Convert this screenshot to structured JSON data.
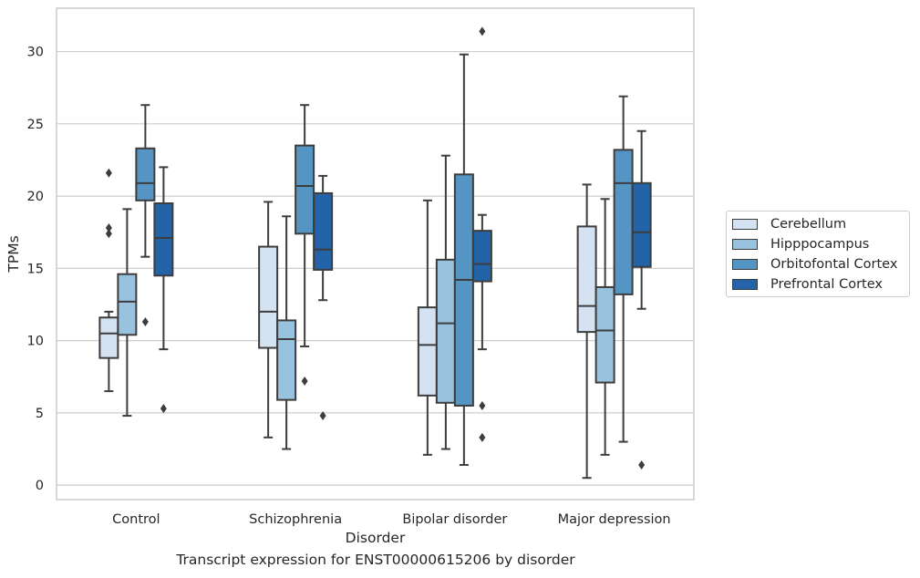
{
  "chart_data": {
    "type": "box",
    "caption": "Transcript expression for ENST00000615206 by disorder",
    "xlabel": "Disorder",
    "ylabel": "TPMs",
    "ylim": [
      -1,
      33
    ],
    "yticks": [
      0,
      5,
      10,
      15,
      20,
      25,
      30
    ],
    "categories": [
      "Control",
      "Schizophrenia",
      "Bipolar disorder",
      "Major depression"
    ],
    "grid": "horizontal",
    "legend_position": "right",
    "series": [
      {
        "name": "Cerebellum",
        "color": "#d4e2f1",
        "boxes": [
          {
            "whislo": 6.5,
            "q1": 8.8,
            "med": 10.5,
            "q3": 11.6,
            "whishi": 12.0,
            "fliers": [
              17.4,
              17.8,
              21.6
            ]
          },
          {
            "whislo": 3.3,
            "q1": 9.5,
            "med": 12.0,
            "q3": 16.5,
            "whishi": 19.6,
            "fliers": []
          },
          {
            "whislo": 2.1,
            "q1": 6.2,
            "med": 9.7,
            "q3": 12.3,
            "whishi": 19.7,
            "fliers": []
          },
          {
            "whislo": 0.5,
            "q1": 10.6,
            "med": 12.4,
            "q3": 17.9,
            "whishi": 20.8,
            "fliers": []
          }
        ]
      },
      {
        "name": "Hipppocampus",
        "color": "#98c2de",
        "boxes": [
          {
            "whislo": 4.8,
            "q1": 10.4,
            "med": 12.7,
            "q3": 14.6,
            "whishi": 19.1,
            "fliers": []
          },
          {
            "whislo": 2.5,
            "q1": 5.9,
            "med": 10.1,
            "q3": 11.4,
            "whishi": 18.6,
            "fliers": []
          },
          {
            "whislo": 2.5,
            "q1": 5.7,
            "med": 11.2,
            "q3": 15.6,
            "whishi": 22.8,
            "fliers": []
          },
          {
            "whislo": 2.1,
            "q1": 7.1,
            "med": 10.7,
            "q3": 13.7,
            "whishi": 19.8,
            "fliers": []
          }
        ]
      },
      {
        "name": "Orbitofontal Cortex",
        "color": "#5595c3",
        "boxes": [
          {
            "whislo": 15.8,
            "q1": 19.7,
            "med": 20.9,
            "q3": 23.3,
            "whishi": 26.3,
            "fliers": [
              11.3
            ]
          },
          {
            "whislo": 9.6,
            "q1": 17.4,
            "med": 20.7,
            "q3": 23.5,
            "whishi": 26.3,
            "fliers": [
              7.2
            ]
          },
          {
            "whislo": 1.4,
            "q1": 5.5,
            "med": 14.2,
            "q3": 21.5,
            "whishi": 29.8,
            "fliers": []
          },
          {
            "whislo": 3.0,
            "q1": 13.2,
            "med": 20.9,
            "q3": 23.2,
            "whishi": 26.9,
            "fliers": []
          }
        ]
      },
      {
        "name": "Prefrontal Cortex",
        "color": "#2363a7",
        "boxes": [
          {
            "whislo": 9.4,
            "q1": 14.5,
            "med": 17.1,
            "q3": 19.5,
            "whishi": 22.0,
            "fliers": [
              5.3
            ]
          },
          {
            "whislo": 12.8,
            "q1": 14.9,
            "med": 16.3,
            "q3": 20.2,
            "whishi": 21.4,
            "fliers": [
              4.8
            ]
          },
          {
            "whislo": 9.4,
            "q1": 14.1,
            "med": 15.3,
            "q3": 17.6,
            "whishi": 18.7,
            "fliers": [
              5.5,
              3.3,
              31.4
            ]
          },
          {
            "whislo": 12.2,
            "q1": 15.1,
            "med": 17.5,
            "q3": 20.9,
            "whishi": 24.5,
            "fliers": [
              1.4
            ]
          }
        ]
      }
    ]
  }
}
